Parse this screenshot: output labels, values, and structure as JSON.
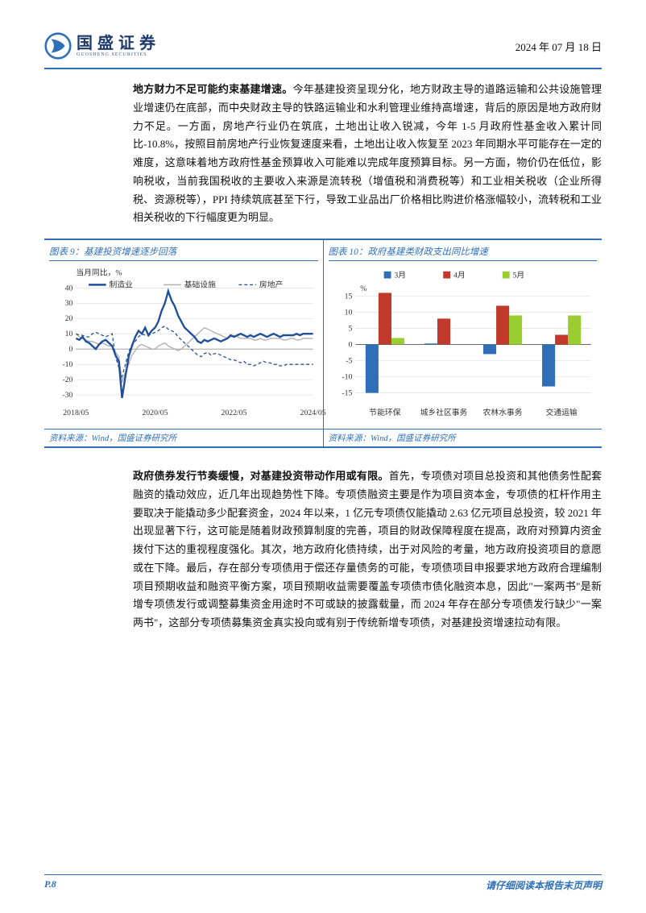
{
  "header": {
    "brand_cn": "国盛证券",
    "brand_en": "GUOSHENG SECURITIES",
    "date": "2024 年 07 月 18 日"
  },
  "para1": {
    "lead": "地方财力不足可能约束基建增速。",
    "text": "今年基建投资呈现分化，地方财政主导的道路运输和公共设施管理业增速仍在底部，而中央财政主导的铁路运输业和水利管理业维持高增速，背后的原因是地方政府财力不足。一方面，房地产行业仍在筑底，土地出让收入锐减，今年 1-5 月政府性基金收入累计同比-10.8%，按照目前房地产行业恢复速度来看，土地出让收入恢复至 2023 年同期水平可能存在一定的难度，这意味着地方政府性基金预算收入可能难以完成年度预算目标。另一方面，物价仍在低位，影响税收，当前我国税收的主要收入来源是流转税（增值税和消费税等）和工业相关税收（企业所得税、资源税等），PPI 持续筑底甚至下行，导致工业品出厂价格相比购进价格涨幅较小，流转税和工业相关税收的下行幅度更为明显。"
  },
  "chart9": {
    "title": "图表 9：基建投资增速逐步回落",
    "unit": "当月同比，%",
    "legend": [
      "制造业",
      "基础设施",
      "房地产"
    ],
    "source": "资料来源：Wind，国盛证券研究所",
    "type": "line",
    "colors": {
      "manufacturing": "#1f4e9b",
      "infrastructure": "#b0b0b0",
      "real_estate": "#1f4e9b"
    },
    "styles": {
      "manufacturing": "solid-thick",
      "infrastructure": "solid-thin",
      "real_estate": "dash"
    },
    "x_ticks": [
      "2018/05",
      "2020/05",
      "2022/05",
      "2024/05"
    ],
    "y_ticks": [
      -30,
      -20,
      -10,
      0,
      10,
      20,
      30,
      40
    ],
    "ylim": [
      -35,
      40
    ],
    "series": {
      "manufacturing": [
        7,
        6,
        8,
        5,
        4,
        2,
        0,
        3,
        5,
        6,
        4,
        2,
        -4,
        -8,
        -32,
        -18,
        -5,
        2,
        8,
        12,
        10,
        14,
        9,
        12,
        14,
        18,
        25,
        30,
        38,
        32,
        28,
        22,
        18,
        14,
        12,
        10,
        8,
        5,
        4,
        6,
        5,
        6,
        7,
        6,
        5,
        6,
        7,
        9,
        8,
        9,
        10,
        9,
        8,
        9,
        8,
        9,
        10,
        9,
        8,
        9,
        10,
        9,
        8,
        9,
        9,
        9,
        9,
        10,
        9,
        10,
        10,
        10,
        10
      ],
      "infrastructure": [
        10,
        8,
        7,
        6,
        5,
        5,
        4,
        3,
        4,
        3,
        2,
        2,
        -2,
        -5,
        -22,
        -15,
        -10,
        -4,
        -1,
        2,
        3,
        2,
        1,
        0,
        0,
        2,
        3,
        4,
        2,
        1,
        0,
        -1,
        0,
        2,
        4,
        6,
        8,
        10,
        12,
        14,
        13,
        12,
        11,
        10,
        9,
        8,
        7,
        8,
        9,
        8,
        7,
        7,
        7,
        7,
        6,
        6,
        7,
        6,
        6,
        7,
        7,
        7,
        7,
        6,
        6,
        7,
        7,
        6,
        6,
        7,
        7,
        7,
        7
      ],
      "real_estate": [
        10,
        9,
        9,
        8,
        8,
        10,
        11,
        10,
        9,
        8,
        9,
        10,
        -5,
        -12,
        -18,
        -10,
        -2,
        3,
        5,
        8,
        10,
        9,
        9,
        10,
        11,
        12,
        14,
        15,
        13,
        12,
        11,
        8,
        6,
        4,
        2,
        0,
        -2,
        -4,
        -5,
        -3,
        -2,
        -4,
        -3,
        -3,
        -4,
        -5,
        -6,
        -7,
        -7,
        -8,
        -9,
        -8,
        -10,
        -10,
        -11,
        -10,
        -9,
        -8,
        -9,
        -9,
        -10,
        -10,
        -11,
        -11,
        -10,
        -10,
        -10,
        -10,
        -10,
        -10,
        -10,
        -10,
        -10
      ]
    },
    "background_color": "#ffffff",
    "grid_color": "#d9d9d9"
  },
  "chart10": {
    "title": "图表 10：政府基建类财政支出同比增速",
    "unit": "%",
    "legend": [
      "3月",
      "4月",
      "5月"
    ],
    "colors": [
      "#2e6fb8",
      "#c0392b",
      "#9acd32"
    ],
    "source": "资料来源：Wind，国盛证券研究所",
    "type": "bar",
    "categories": [
      "节能环保",
      "城乡社区事务",
      "农林水事务",
      "交通运输"
    ],
    "series": {
      "m3": [
        -15,
        0.3,
        -3,
        -13
      ],
      "m4": [
        16,
        8,
        12,
        3
      ],
      "m5": [
        2,
        0,
        9,
        9
      ]
    },
    "y_ticks": [
      -15,
      -10,
      -5,
      0,
      5,
      10,
      15
    ],
    "ylim": [
      -18,
      18
    ],
    "background_color": "#ffffff",
    "grid_color": "#d9d9d9",
    "bar_width": 0.22
  },
  "para2": {
    "lead": "政府债券发行节奏缓慢，对基建投资带动作用或有限。",
    "text": "首先，专项债对项目总投资和其他债务性配套融资的撬动效应，近几年出现趋势性下降。专项债融资主要是作为项目资本金，专项债的杠杆作用主要取决于能撬动多少配套资金，2024 年以来，1 亿元专项债仅能撬动 2.63 亿元项目总投资，较 2021 年出现显著下行，这可能是随着财政预算制度的完善，项目的财政保障程度在提高，政府对预算内资金拨付下达的重视程度强化。其次，地方政府化债持续，出于对风险的考量，地方政府投资项目的意愿或在下降。最后，存在部分专项债用于偿还存量债务的可能，专项债项目申报要求地方政府合理编制项目预期收益和融资平衡方案，项目预期收益需要覆盖专项债市债化融资本息，因此\"一案两书\"是新增专项债发行或调整募集资金用途时不可或缺的披露载量，而 2024 年存在部分专项债发行缺少\"一案两书\"，这部分专项债募集资金真实投向或有别于传统新增专项债，对基建投资增速拉动有限。"
  },
  "footer": {
    "page": "P.8",
    "disclaimer": "请仔细阅读本报告末页声明"
  }
}
